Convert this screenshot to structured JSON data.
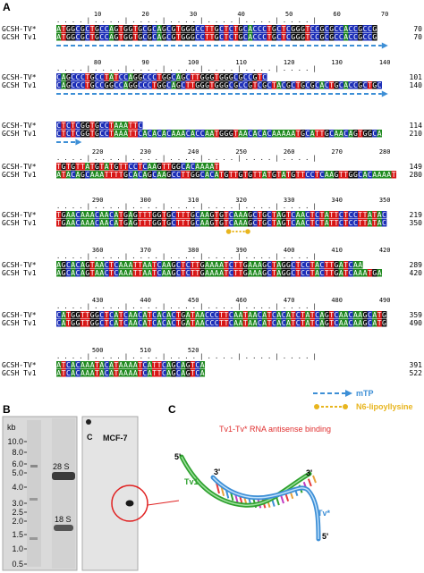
{
  "panels": {
    "a": "A",
    "b": "B",
    "c": "C"
  },
  "alignment": {
    "seq_names": [
      "GCSH-TV*",
      "GCSH Tv1"
    ],
    "blocks": [
      {
        "ticks": [
          "10",
          "20",
          "30",
          "40",
          "50",
          "60",
          "70"
        ],
        "ends": [
          "70",
          "70"
        ],
        "seqs": [
          "ATGGCGCTGCCAGTGGTGCGCAGCGTGGGCCTTGCTCTGCACCCTGCTCGGGTCCGCGCCACCGCCG",
          "ATGGCGCTGCCAGTGGTGCGCAGCGTGGGCCTTGCTCTGCACCCTGCTCGGGTCCGCGCCACCGCCG"
        ]
      },
      {
        "ticks": [
          "80",
          "90",
          "100",
          "110",
          "120",
          "130",
          "140"
        ],
        "ends": [
          "101",
          "140"
        ],
        "seqs": [
          "CAGCCCTGCCTATCCAGGCCCTGGCAGCTTGGGTGGGCGCCGTC",
          "CAGCCCTGCCGGCCAGGCCCTGGCAGCTTGGGTGGGCGCCGTCGCTACGCTGCGCACTGCACCGCTGC"
        ]
      },
      {
        "ticks": [],
        "ends": [
          "114",
          "210"
        ],
        "seqs": [
          "CTCTCGGTGCCTAAATTC",
          "CTCTCGGTGCCTAAATTCACACACAAACACCAATGGGTAACACACAAAAATGCATTGCAACAGTGGCA"
        ]
      },
      {
        "ticks": [
          "220",
          "230",
          "240",
          "250",
          "260",
          "270",
          "280"
        ],
        "ends": [
          "149",
          "280"
        ],
        "seqs": [
          "TGTGTTATGTATGTTCCTCAAGTTGGCACAAAAT",
          "ATACAGCAAATTTTGCACAGCAAGCCTTGGCACATGTTGTGTTATGTATGTTCCTCAAGTTGGCACAAAAT"
        ]
      },
      {
        "ticks": [
          "290",
          "300",
          "310",
          "320",
          "330",
          "340",
          "350"
        ],
        "ends": [
          "219",
          "350"
        ],
        "seqs": [
          "TGAACAAACAACATGAGTTTGGTGCTTTGCAAGTGTCAAAGCTGCTAGTCAACTCTATTCTCCTTATAC",
          "TGAACAAACAACATGAGTTTGGTGCTTTGCAAGTGTCAAAGCTGCTAGTCAACTCTATTCTCCTTATAC"
        ]
      },
      {
        "ticks": [
          "360",
          "370",
          "380",
          "390",
          "400",
          "410",
          "420"
        ],
        "ends": [
          "289",
          "420"
        ],
        "seqs": [
          "AGCACAGTAACTCAAATTAATCAAGCTCTTGAAAATCTTGAAAGCTAGGCTCCTACTTGATCAA",
          "AGCACAGTAACTCAAATTAATCAAGCTCTTGAAAATCTTGAAAGCTAGGCTCCTACTTGATCAAATGA"
        ]
      },
      {
        "ticks": [
          "430",
          "440",
          "450",
          "460",
          "470",
          "480",
          "490"
        ],
        "ends": [
          "359",
          "490"
        ],
        "seqs": [
          "CATGGTTGGCTCATCAACATCACACTGATAACCCTTCAATAACATCACATCTATCAGTCAACAAGCATG",
          "CATGGTTGGCTCATCAACATCACACTGATAACCCTTCAATAACATCACATCTATCAGTCAACAAGCATG"
        ]
      },
      {
        "ticks": [
          "500",
          "510",
          "520"
        ],
        "ends": [
          "391",
          "522"
        ],
        "seqs": [
          "ATCACAAATACATAAAATCATTCAGCAGTCA",
          "ATCACAAATACATAAAATCATTCAGCAGTCA"
        ]
      }
    ],
    "legend": {
      "mtp_label": "mTP",
      "lipo_label": "N6-lipoyllysine"
    }
  },
  "colors": {
    "A": "#1f8a1f",
    "C": "#1d2fb8",
    "G": "#111111",
    "T": "#d81515",
    "mtp": "#3d8fd6",
    "lipo": "#e8b51e",
    "tv1_strand": "#2fa12f",
    "tv_strand": "#3d8fd6",
    "title_red": "#e03030"
  },
  "gel": {
    "kb_label": "kb",
    "markers": [
      "10.0",
      "8.0",
      "6.0",
      "5.0",
      "4.0",
      "3.0",
      "2.5",
      "2.0",
      "1.5",
      "1.0",
      "0.5"
    ],
    "band_28s": "28 S",
    "band_18s": "18 S"
  },
  "blot": {
    "lane_c": "C",
    "cell_line": "MCF-7"
  },
  "diagram": {
    "title": "Tv1-Tv* RNA antisense binding",
    "tv1_label": "Tv1",
    "tv_label": "Tv*",
    "prime_5a": "5'",
    "prime_3a": "3'",
    "prime_3b": "3'",
    "prime_5b": "5'"
  }
}
